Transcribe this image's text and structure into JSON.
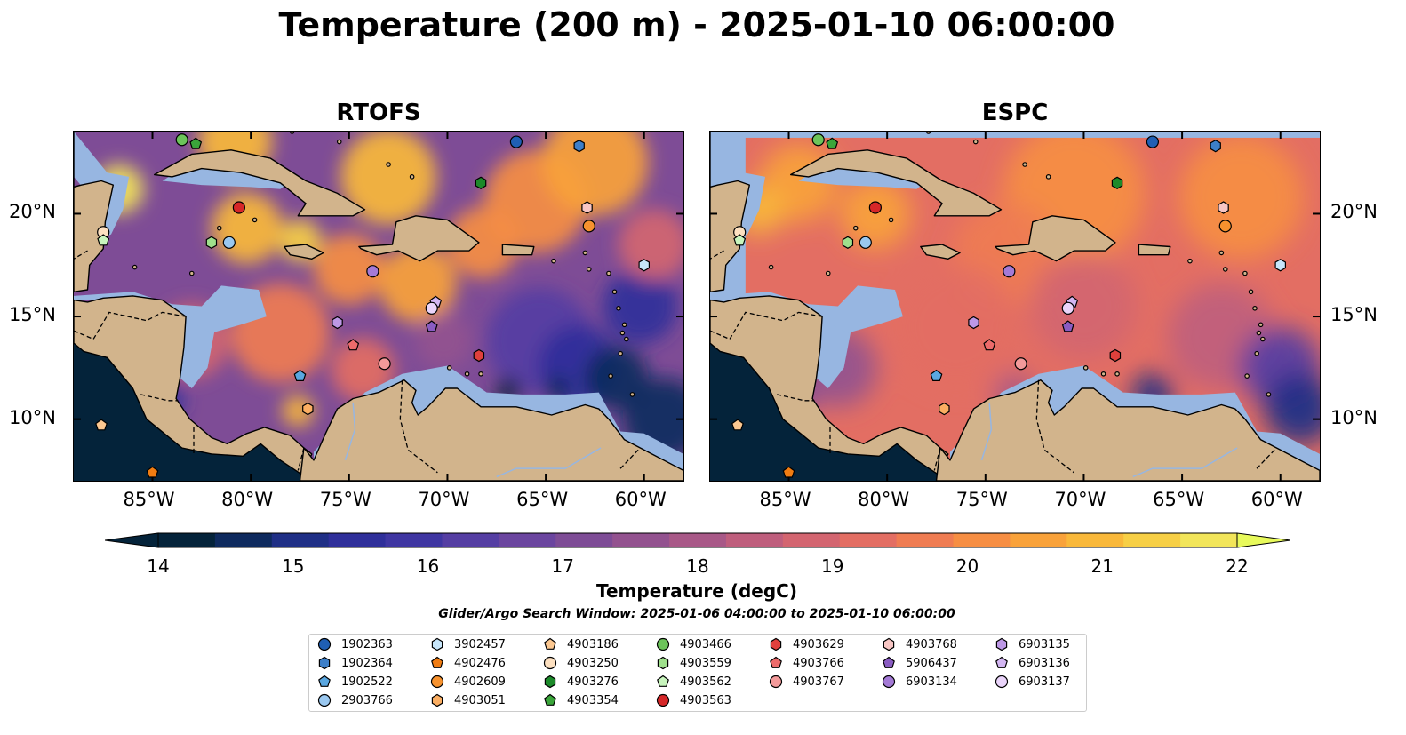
{
  "title": "Temperature (200 m) - 2025-01-10 06:00:00",
  "panels": [
    {
      "title": "RTOFS"
    },
    {
      "title": "ESPC"
    }
  ],
  "lon_ticks": [
    "85°W",
    "80°W",
    "75°W",
    "70°W",
    "65°W",
    "60°W"
  ],
  "lat_ticks": [
    "20°N",
    "15°N",
    "10°N"
  ],
  "extent": {
    "lon": [
      -89,
      -58
    ],
    "lat": [
      7,
      24
    ]
  },
  "colorbar": {
    "label": "Temperature (degC)",
    "range": [
      14,
      22
    ],
    "ticks": [
      "14",
      "15",
      "16",
      "17",
      "18",
      "19",
      "20",
      "21",
      "22"
    ],
    "colors": [
      "#04233a",
      "#0e2a5e",
      "#1f2f86",
      "#2f2f9a",
      "#3f36a2",
      "#553ea3",
      "#6b459f",
      "#7e4c96",
      "#93528f",
      "#a85887",
      "#bf5e7d",
      "#d36570",
      "#e36e63",
      "#ef7c52",
      "#f68e43",
      "#f9a23a",
      "#f9b83a",
      "#f7cf45",
      "#f2e55a"
    ],
    "under_color": "#04233a",
    "over_color": "#e8fa5b"
  },
  "search_window": "Glider/Argo Search Window: 2025-01-06 04:00:00 to 2025-01-10 06:00:00",
  "colors": {
    "land": "#d2b48c",
    "shelf": "#97b6e1",
    "deep": "#04233a"
  },
  "legend": [
    {
      "id": "1902363",
      "color": "#1f5fb4",
      "marker": "circle"
    },
    {
      "id": "1902364",
      "color": "#3d7fc9",
      "marker": "hexagon"
    },
    {
      "id": "1902522",
      "color": "#5aa7e0",
      "marker": "pentagon"
    },
    {
      "id": "2903766",
      "color": "#9ac8f0",
      "marker": "circle"
    },
    {
      "id": "3902457",
      "color": "#c7e6fa",
      "marker": "hexagon"
    },
    {
      "id": "4902476",
      "color": "#f07c12",
      "marker": "pentagon"
    },
    {
      "id": "4902609",
      "color": "#f7922e",
      "marker": "circle"
    },
    {
      "id": "4903051",
      "color": "#fbae62",
      "marker": "hexagon"
    },
    {
      "id": "4903186",
      "color": "#fcc891",
      "marker": "pentagon"
    },
    {
      "id": "4903250",
      "color": "#fde0c0",
      "marker": "circle"
    },
    {
      "id": "4903276",
      "color": "#1c8a2a",
      "marker": "hexagon"
    },
    {
      "id": "4903354",
      "color": "#3aa53a",
      "marker": "pentagon"
    },
    {
      "id": "4903466",
      "color": "#6cc45a",
      "marker": "circle"
    },
    {
      "id": "4903559",
      "color": "#9fe08c",
      "marker": "hexagon"
    },
    {
      "id": "4903562",
      "color": "#c8f5bd",
      "marker": "pentagon"
    },
    {
      "id": "4903563",
      "color": "#d62728",
      "marker": "circle"
    },
    {
      "id": "4903629",
      "color": "#e0403c",
      "marker": "hexagon"
    },
    {
      "id": "4903766",
      "color": "#ec6b6b",
      "marker": "pentagon"
    },
    {
      "id": "4903767",
      "color": "#f39a9a",
      "marker": "circle"
    },
    {
      "id": "4903768",
      "color": "#f8c6c4",
      "marker": "hexagon"
    },
    {
      "id": "5906437",
      "color": "#8a5cc2",
      "marker": "pentagon"
    },
    {
      "id": "6903134",
      "color": "#a47ad6",
      "marker": "circle"
    },
    {
      "id": "6903135",
      "color": "#bd98e6",
      "marker": "hexagon"
    },
    {
      "id": "6903136",
      "color": "#d3b6f2",
      "marker": "pentagon"
    },
    {
      "id": "6903137",
      "color": "#ead4fa",
      "marker": "circle"
    }
  ],
  "floats": [
    {
      "id": "4903466",
      "lon": -83.5,
      "lat": 23.6
    },
    {
      "id": "4903354",
      "lon": -82.8,
      "lat": 23.4
    },
    {
      "id": "1902363",
      "lon": -66.5,
      "lat": 23.5
    },
    {
      "id": "1902364",
      "lon": -63.3,
      "lat": 23.3
    },
    {
      "id": "4903276",
      "lon": -68.3,
      "lat": 21.5
    },
    {
      "id": "4903563",
      "lon": -80.6,
      "lat": 20.3
    },
    {
      "id": "4903768",
      "lon": -62.9,
      "lat": 20.3
    },
    {
      "id": "4902609",
      "lon": -62.8,
      "lat": 19.4
    },
    {
      "id": "4903250",
      "lon": -87.5,
      "lat": 19.1
    },
    {
      "id": "4903562",
      "lon": -87.5,
      "lat": 18.7
    },
    {
      "id": "4903559",
      "lon": -82.0,
      "lat": 18.6
    },
    {
      "id": "2903766",
      "lon": -81.1,
      "lat": 18.6
    },
    {
      "id": "3902457",
      "lon": -60.0,
      "lat": 17.5
    },
    {
      "id": "6903134",
      "lon": -73.8,
      "lat": 17.2
    },
    {
      "id": "6903136",
      "lon": -70.6,
      "lat": 15.7
    },
    {
      "id": "6903137",
      "lon": -70.8,
      "lat": 15.4
    },
    {
      "id": "6903135",
      "lon": -75.6,
      "lat": 14.7
    },
    {
      "id": "5906437",
      "lon": -70.8,
      "lat": 14.5
    },
    {
      "id": "4903766",
      "lon": -74.8,
      "lat": 13.6
    },
    {
      "id": "4903629",
      "lon": -68.4,
      "lat": 13.1
    },
    {
      "id": "4903767",
      "lon": -73.2,
      "lat": 12.7
    },
    {
      "id": "1902522",
      "lon": -77.5,
      "lat": 12.1
    },
    {
      "id": "4903051",
      "lon": -77.1,
      "lat": 10.5
    },
    {
      "id": "4903186",
      "lon": -87.6,
      "lat": 9.7
    },
    {
      "id": "4902476",
      "lon": -85.0,
      "lat": 7.4
    }
  ]
}
